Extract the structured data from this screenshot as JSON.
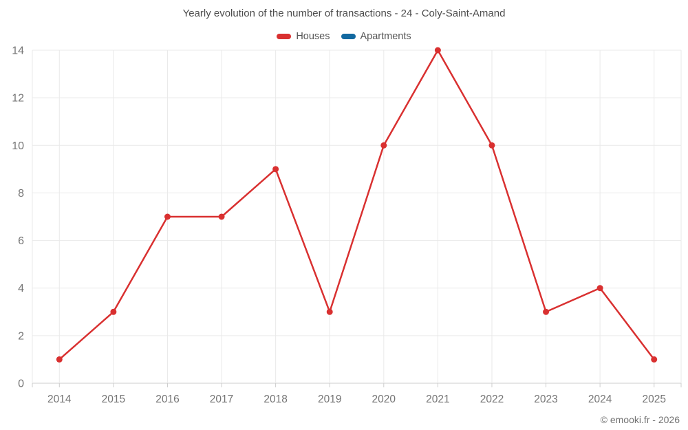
{
  "title": "Yearly evolution of the number of transactions - 24 - Coly-Saint-Amand",
  "footer": "© emooki.fr - 2026",
  "chart_data": {
    "type": "line",
    "title": "Yearly evolution of the number of transactions - 24 - Coly-Saint-Amand",
    "categories": [
      "2014",
      "2015",
      "2016",
      "2017",
      "2018",
      "2019",
      "2020",
      "2021",
      "2022",
      "2023",
      "2024",
      "2025"
    ],
    "series": [
      {
        "name": "Houses",
        "color": "#d93030",
        "values": [
          1,
          3,
          7,
          7,
          9,
          3,
          10,
          14,
          10,
          3,
          4,
          1
        ]
      },
      {
        "name": "Apartments",
        "color": "#1269a0",
        "values": []
      }
    ],
    "xlabel": "",
    "ylabel": "",
    "ylim": [
      0,
      14
    ],
    "yticks": [
      0,
      2,
      4,
      6,
      8,
      10,
      12,
      14
    ],
    "grid": true,
    "legend_position": "top"
  },
  "colors": {
    "grid": "#e9e9e9",
    "axis": "#cccccc",
    "tick_text": "#757575",
    "title_text": "#4c4c4c"
  }
}
